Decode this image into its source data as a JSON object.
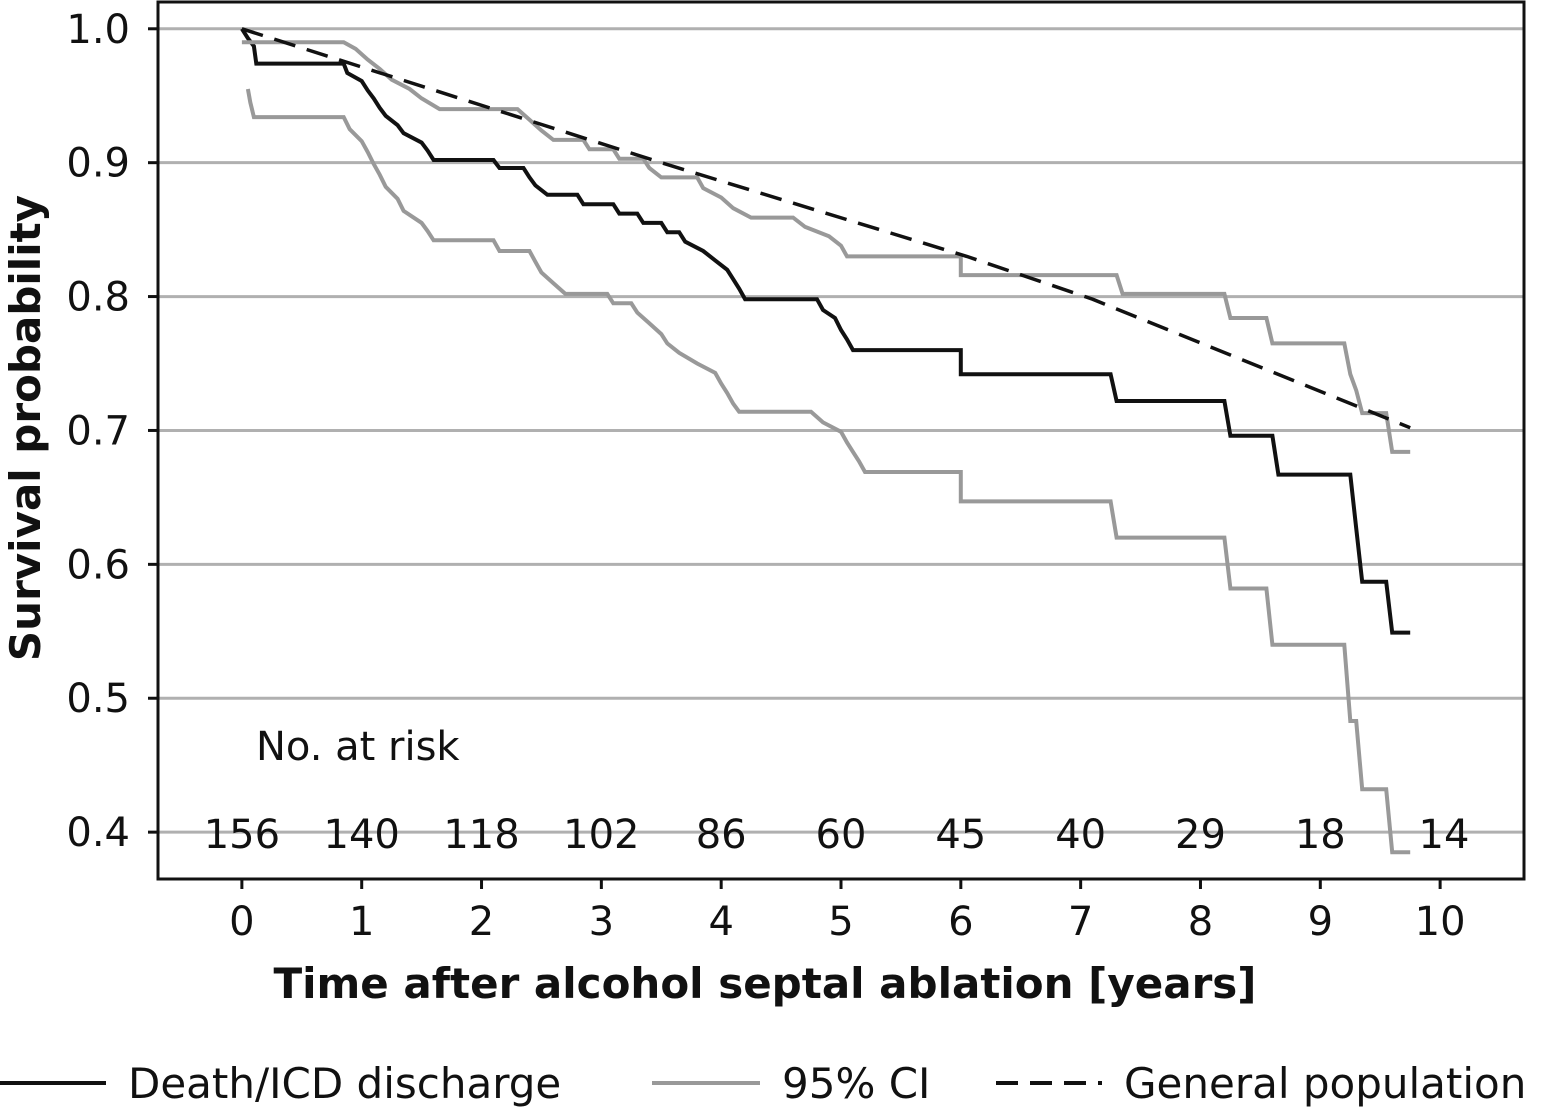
{
  "chart_data": {
    "type": "line",
    "xlabel": "Time after alcohol septal ablation [years]",
    "ylabel": "Survival probability",
    "xlim": [
      -0.7,
      10.7
    ],
    "ylim": [
      0.365,
      1.02
    ],
    "xticks": [
      "0",
      "1",
      "2",
      "3",
      "4",
      "5",
      "6",
      "7",
      "8",
      "9",
      "10"
    ],
    "yticks": [
      "0.4",
      "0.5",
      "0.6",
      "0.7",
      "0.8",
      "0.9",
      "1.0"
    ],
    "grid": "horizontal",
    "colors": {
      "main": "#111111",
      "ci": "#999999",
      "general": "#111111",
      "grid": "#b0b0b0"
    },
    "series": [
      {
        "name": "Death/ICD discharge",
        "style": "solid",
        "color": "#111111",
        "points": [
          [
            0,
            1.0
          ],
          [
            0.05,
            0.993
          ],
          [
            0.1,
            0.987
          ],
          [
            0.12,
            0.974
          ],
          [
            0.85,
            0.974
          ],
          [
            0.88,
            0.967
          ],
          [
            1.0,
            0.961
          ],
          [
            1.05,
            0.954
          ],
          [
            1.1,
            0.948
          ],
          [
            1.15,
            0.941
          ],
          [
            1.2,
            0.935
          ],
          [
            1.3,
            0.928
          ],
          [
            1.35,
            0.922
          ],
          [
            1.5,
            0.915
          ],
          [
            1.55,
            0.909
          ],
          [
            1.6,
            0.902
          ],
          [
            2.1,
            0.902
          ],
          [
            2.15,
            0.896
          ],
          [
            2.35,
            0.896
          ],
          [
            2.4,
            0.889
          ],
          [
            2.45,
            0.883
          ],
          [
            2.55,
            0.876
          ],
          [
            2.8,
            0.876
          ],
          [
            2.85,
            0.869
          ],
          [
            3.1,
            0.869
          ],
          [
            3.15,
            0.862
          ],
          [
            3.3,
            0.862
          ],
          [
            3.35,
            0.855
          ],
          [
            3.5,
            0.855
          ],
          [
            3.55,
            0.848
          ],
          [
            3.65,
            0.848
          ],
          [
            3.7,
            0.841
          ],
          [
            3.85,
            0.834
          ],
          [
            3.95,
            0.827
          ],
          [
            4.05,
            0.82
          ],
          [
            4.1,
            0.813
          ],
          [
            4.15,
            0.806
          ],
          [
            4.2,
            0.798
          ],
          [
            4.8,
            0.798
          ],
          [
            4.85,
            0.79
          ],
          [
            4.95,
            0.784
          ],
          [
            5.0,
            0.775
          ],
          [
            5.05,
            0.768
          ],
          [
            5.1,
            0.76
          ],
          [
            6.0,
            0.76
          ],
          [
            6.0,
            0.742
          ],
          [
            7.25,
            0.742
          ],
          [
            7.3,
            0.722
          ],
          [
            8.2,
            0.722
          ],
          [
            8.25,
            0.696
          ],
          [
            8.6,
            0.696
          ],
          [
            8.65,
            0.667
          ],
          [
            9.25,
            0.667
          ],
          [
            9.3,
            0.627
          ],
          [
            9.35,
            0.587
          ],
          [
            9.55,
            0.587
          ],
          [
            9.6,
            0.549
          ],
          [
            9.75,
            0.549
          ]
        ]
      },
      {
        "name": "95% CI",
        "style": "solid",
        "color": "#999999",
        "points": [
          [
            0,
            0.99
          ],
          [
            0.3,
            0.99
          ],
          [
            0.85,
            0.99
          ],
          [
            0.95,
            0.985
          ],
          [
            1.05,
            0.977
          ],
          [
            1.15,
            0.97
          ],
          [
            1.25,
            0.962
          ],
          [
            1.4,
            0.955
          ],
          [
            1.5,
            0.948
          ],
          [
            1.65,
            0.94
          ],
          [
            2.3,
            0.94
          ],
          [
            2.4,
            0.932
          ],
          [
            2.5,
            0.924
          ],
          [
            2.6,
            0.917
          ],
          [
            2.85,
            0.917
          ],
          [
            2.9,
            0.91
          ],
          [
            3.1,
            0.91
          ],
          [
            3.15,
            0.903
          ],
          [
            3.35,
            0.903
          ],
          [
            3.4,
            0.896
          ],
          [
            3.5,
            0.889
          ],
          [
            3.8,
            0.889
          ],
          [
            3.85,
            0.881
          ],
          [
            4.0,
            0.874
          ],
          [
            4.1,
            0.866
          ],
          [
            4.25,
            0.859
          ],
          [
            4.6,
            0.859
          ],
          [
            4.7,
            0.852
          ],
          [
            4.9,
            0.845
          ],
          [
            5.0,
            0.838
          ],
          [
            5.05,
            0.83
          ],
          [
            6.0,
            0.83
          ],
          [
            6.0,
            0.816
          ],
          [
            7.3,
            0.816
          ],
          [
            7.35,
            0.802
          ],
          [
            8.2,
            0.802
          ],
          [
            8.25,
            0.784
          ],
          [
            8.55,
            0.784
          ],
          [
            8.6,
            0.765
          ],
          [
            9.2,
            0.765
          ],
          [
            9.25,
            0.742
          ],
          [
            9.3,
            0.73
          ],
          [
            9.35,
            0.713
          ],
          [
            9.55,
            0.713
          ],
          [
            9.6,
            0.684
          ],
          [
            9.75,
            0.684
          ]
        ]
      },
      {
        "name": "95% CI lower",
        "style": "solid",
        "color": "#999999",
        "points": [
          [
            0.05,
            0.955
          ],
          [
            0.07,
            0.945
          ],
          [
            0.1,
            0.934
          ],
          [
            0.85,
            0.934
          ],
          [
            0.9,
            0.925
          ],
          [
            1.0,
            0.916
          ],
          [
            1.05,
            0.908
          ],
          [
            1.1,
            0.899
          ],
          [
            1.15,
            0.891
          ],
          [
            1.2,
            0.882
          ],
          [
            1.3,
            0.873
          ],
          [
            1.35,
            0.864
          ],
          [
            1.5,
            0.855
          ],
          [
            1.55,
            0.849
          ],
          [
            1.6,
            0.842
          ],
          [
            2.1,
            0.842
          ],
          [
            2.15,
            0.834
          ],
          [
            2.4,
            0.834
          ],
          [
            2.45,
            0.826
          ],
          [
            2.5,
            0.818
          ],
          [
            2.6,
            0.81
          ],
          [
            2.7,
            0.802
          ],
          [
            3.05,
            0.802
          ],
          [
            3.1,
            0.795
          ],
          [
            3.25,
            0.795
          ],
          [
            3.3,
            0.788
          ],
          [
            3.4,
            0.78
          ],
          [
            3.5,
            0.772
          ],
          [
            3.55,
            0.765
          ],
          [
            3.65,
            0.758
          ],
          [
            3.8,
            0.75
          ],
          [
            3.95,
            0.743
          ],
          [
            4.0,
            0.735
          ],
          [
            4.05,
            0.728
          ],
          [
            4.1,
            0.72
          ],
          [
            4.15,
            0.714
          ],
          [
            4.75,
            0.714
          ],
          [
            4.85,
            0.706
          ],
          [
            5.0,
            0.699
          ],
          [
            5.05,
            0.691
          ],
          [
            5.1,
            0.684
          ],
          [
            5.15,
            0.677
          ],
          [
            5.2,
            0.669
          ],
          [
            6.0,
            0.669
          ],
          [
            6.0,
            0.647
          ],
          [
            7.25,
            0.647
          ],
          [
            7.3,
            0.62
          ],
          [
            8.2,
            0.62
          ],
          [
            8.25,
            0.582
          ],
          [
            8.55,
            0.582
          ],
          [
            8.6,
            0.54
          ],
          [
            9.2,
            0.54
          ],
          [
            9.25,
            0.483
          ],
          [
            9.3,
            0.483
          ],
          [
            9.35,
            0.432
          ],
          [
            9.55,
            0.432
          ],
          [
            9.6,
            0.385
          ],
          [
            9.75,
            0.385
          ]
        ]
      },
      {
        "name": "General population",
        "style": "dashed",
        "color": "#111111",
        "points": [
          [
            0,
            1.0
          ],
          [
            3.5,
            0.9
          ],
          [
            6.05,
            0.83
          ],
          [
            7.1,
            0.798
          ],
          [
            9.75,
            0.702
          ]
        ]
      }
    ],
    "at_risk": {
      "label": "No. at risk",
      "x": [
        0,
        1,
        2,
        3,
        4,
        5,
        6,
        7,
        8,
        9,
        9.75
      ],
      "counts": [
        "156",
        "140",
        "118",
        "102",
        "86",
        "60",
        "45",
        "40",
        "29",
        "18",
        "14"
      ]
    },
    "legend": {
      "position": "bottom",
      "items": [
        {
          "label": "Death/ICD discharge",
          "style": "solid",
          "color": "#111111"
        },
        {
          "label": "95% CI",
          "style": "solid",
          "color": "#999999"
        },
        {
          "label": "General population",
          "style": "dashed",
          "color": "#111111"
        }
      ]
    }
  }
}
